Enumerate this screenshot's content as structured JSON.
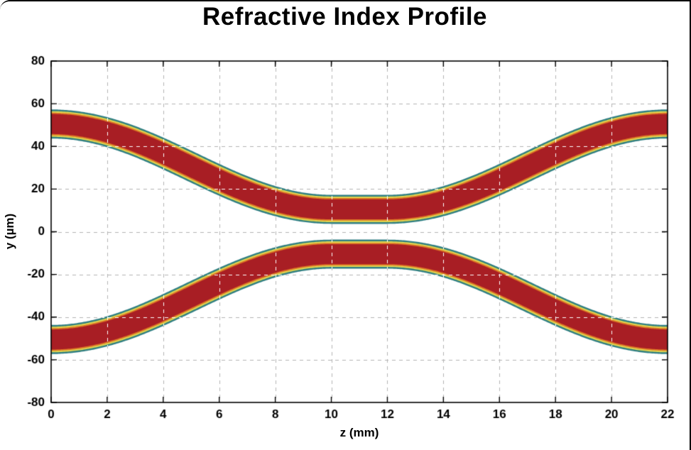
{
  "page": {
    "background": "#ffffff"
  },
  "chart_data": {
    "type": "area",
    "title": "Refractive Index Profile",
    "xlabel": "z (mm)",
    "ylabel": "y (µm)",
    "xlim": [
      0,
      22
    ],
    "ylim": [
      -80,
      80
    ],
    "xticks": [
      0,
      2,
      4,
      6,
      8,
      10,
      12,
      14,
      16,
      18,
      20,
      22
    ],
    "yticks": [
      -80,
      -60,
      -40,
      -20,
      0,
      20,
      40,
      60,
      80
    ],
    "grid": true,
    "grid_color": "#b4b4b4",
    "grid_color_over_waveguide": "#ffffff",
    "frame_color": "#000000",
    "waveguides": {
      "count": 2,
      "description": "Two mirror-symmetric S-bend waveguides forming a directional coupler; centers move from ±50.5 µm at the edges to ±10.5 µm in the central flat region via raised-cosine transitions",
      "center_outer_um": 50.5,
      "center_inner_um": 10.5,
      "flat_z_mm": [
        10,
        12
      ],
      "transition": "raised-cosine",
      "layers": [
        {
          "name": "outer-teal-edge",
          "color": "#2f7f82",
          "width_um": 13.6
        },
        {
          "name": "yellow-edge",
          "color": "#e0d44f",
          "width_um": 12.0
        },
        {
          "name": "orange-edge",
          "color": "#de7526",
          "width_um": 10.6
        },
        {
          "name": "dark-red-core",
          "color": "#a81e24",
          "width_um": 9.4
        }
      ]
    }
  }
}
